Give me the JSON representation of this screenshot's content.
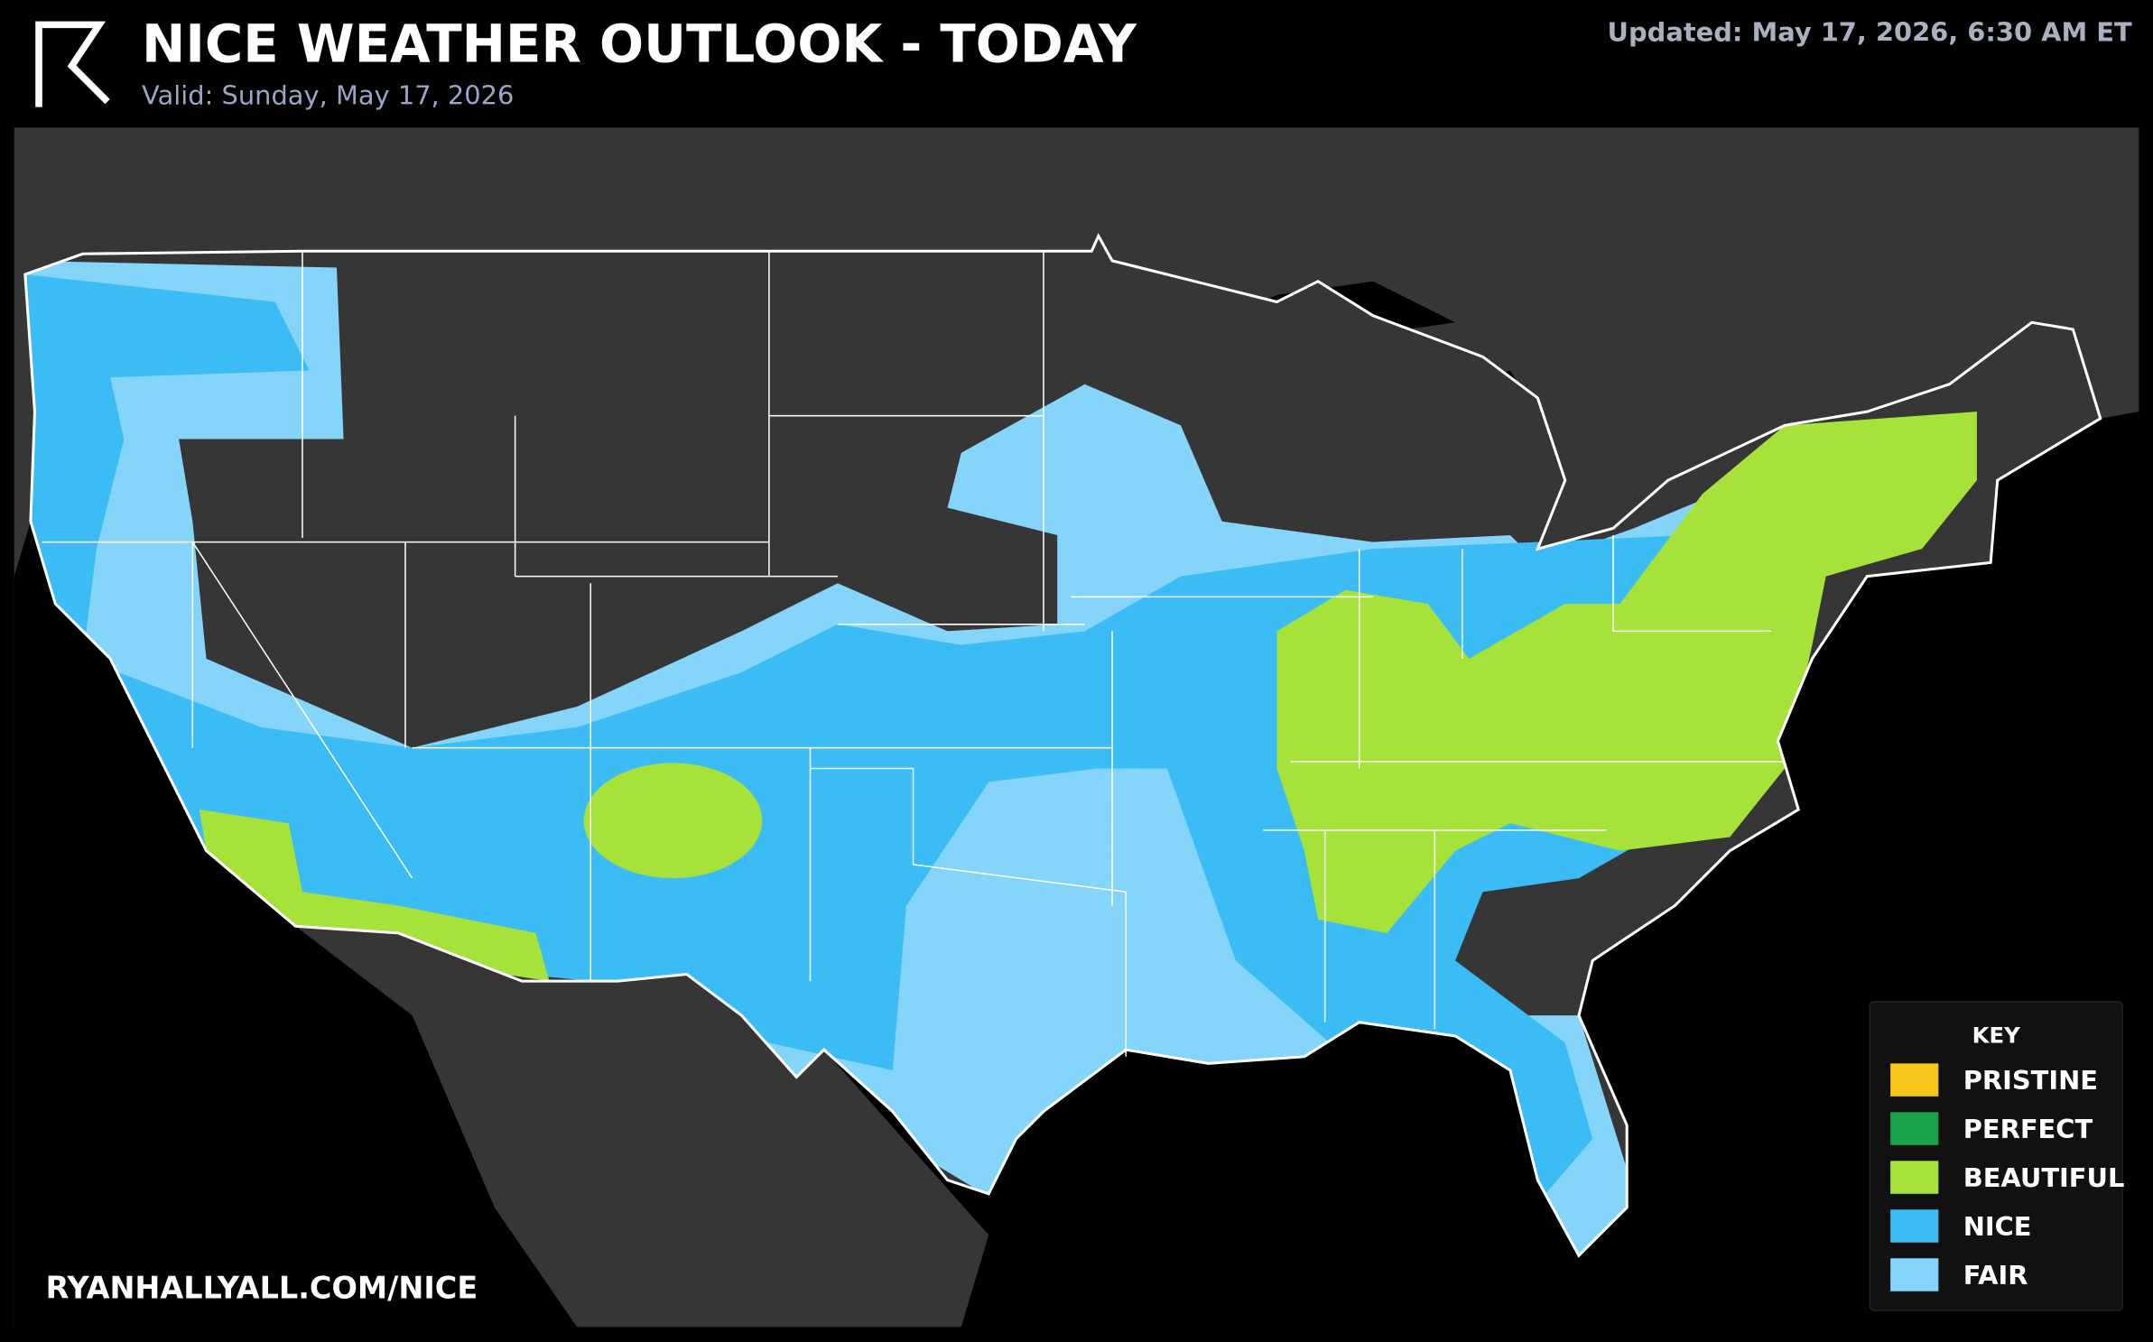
{
  "header": {
    "title": "NICE WEATHER OUTLOOK - TODAY",
    "valid": "Valid: Sunday, May 17, 2026",
    "updated": "Updated: May 17, 2026, 6:30 AM ET"
  },
  "footer": {
    "url": "RYANHALLYALL.COM/NICE"
  },
  "legend": {
    "title": "KEY",
    "items": [
      {
        "label": "PRISTINE",
        "color": "#f5c518"
      },
      {
        "label": "PERFECT",
        "color": "#1aa34a"
      },
      {
        "label": "BEAUTIFUL",
        "color": "#a6e23a"
      },
      {
        "label": "NICE",
        "color": "#3bbcf5"
      },
      {
        "label": "FAIR",
        "color": "#85d4fa"
      }
    ]
  }
}
